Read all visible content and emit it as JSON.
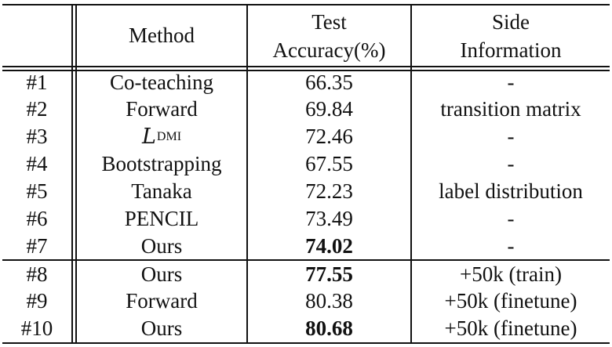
{
  "table": {
    "headers": {
      "id": "",
      "method": "Method",
      "accuracy_line1": "Test",
      "accuracy_line2": "Accuracy(%)",
      "side_line1": "Side",
      "side_line2": "Information"
    },
    "rows": [
      {
        "id": "#1",
        "method": "Co-teaching",
        "accuracy": "66.35",
        "side": "-",
        "bold": false
      },
      {
        "id": "#2",
        "method": "Forward",
        "accuracy": "69.84",
        "side": "transition matrix",
        "bold": false
      },
      {
        "id": "#3",
        "method": "L",
        "method_sub": "DMI",
        "accuracy": "72.46",
        "side": "-",
        "bold": false
      },
      {
        "id": "#4",
        "method": "Bootstrapping",
        "accuracy": "67.55",
        "side": "-",
        "bold": false
      },
      {
        "id": "#5",
        "method": "Tanaka",
        "accuracy": "72.23",
        "side": "label distribution",
        "bold": false
      },
      {
        "id": "#6",
        "method": "PENCIL",
        "accuracy": "73.49",
        "side": "-",
        "bold": false
      },
      {
        "id": "#7",
        "method": "Ours",
        "accuracy": "74.02",
        "side": "-",
        "bold": true
      },
      {
        "id": "#8",
        "method": "Ours",
        "accuracy": "77.55",
        "side": "+50k (train)",
        "bold": true
      },
      {
        "id": "#9",
        "method": "Forward",
        "accuracy": "80.38",
        "side": "+50k (finetune)",
        "bold": false
      },
      {
        "id": "#10",
        "method": "Ours",
        "accuracy": "80.68",
        "side": "+50k (finetune)",
        "bold": true
      }
    ]
  }
}
